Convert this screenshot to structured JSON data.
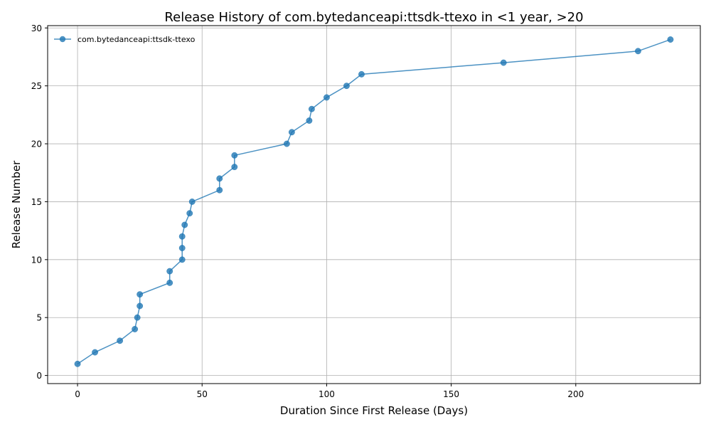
{
  "chart_data": {
    "type": "line",
    "title": "Release History of com.bytedanceapi:ttsdk-ttexo in <1 year, >20",
    "xlabel": "Duration Since First Release (Days)",
    "ylabel": "Release Number",
    "xlim": [
      -12,
      250
    ],
    "ylim": [
      -0.7,
      30.2
    ],
    "xticks": [
      0,
      50,
      100,
      150,
      200
    ],
    "yticks": [
      0,
      5,
      10,
      15,
      20,
      25,
      30
    ],
    "grid": true,
    "legend_position": "top-left",
    "color": "#1f77b4",
    "series": [
      {
        "name": "com.bytedanceapi:ttsdk-ttexo",
        "x": [
          0,
          7,
          17,
          23,
          24,
          25,
          25,
          37,
          37,
          42,
          42,
          42,
          43,
          45,
          46,
          57,
          57,
          63,
          63,
          84,
          86,
          93,
          94,
          100,
          108,
          114,
          171,
          225,
          238
        ],
        "y": [
          1,
          2,
          3,
          4,
          5,
          6,
          7,
          8,
          9,
          10,
          11,
          12,
          13,
          14,
          15,
          16,
          17,
          18,
          19,
          20,
          21,
          22,
          23,
          24,
          25,
          26,
          27,
          28,
          29
        ]
      }
    ]
  }
}
